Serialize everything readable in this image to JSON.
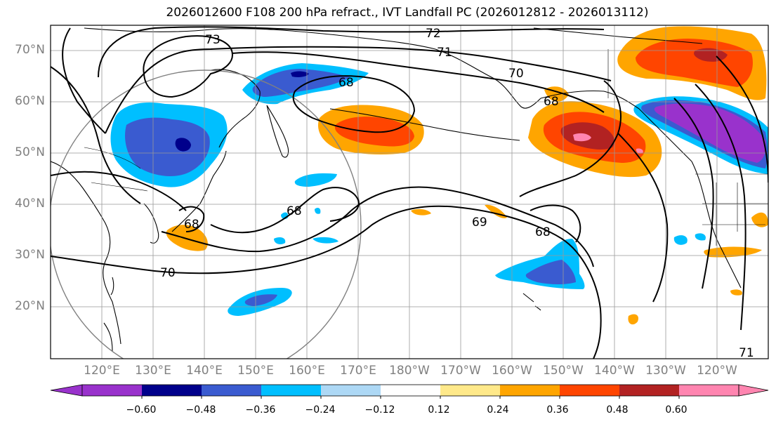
{
  "title": "2026012600 F108 200 hPa refract., IVT Landfall PC (2026012812 - 2026013112)",
  "lat_labels": [
    "70°N",
    "60°N",
    "50°N",
    "40°N",
    "30°N",
    "20°N"
  ],
  "lon_labels": [
    "120°E",
    "130°E",
    "140°E",
    "150°E",
    "160°E",
    "170°E",
    "180°W",
    "170°W",
    "160°W",
    "150°W",
    "140°W",
    "130°W",
    "120°W"
  ],
  "contour_labels": [
    "73",
    "72",
    "71",
    "70",
    "68",
    "69",
    "68",
    "70",
    "68",
    "68",
    "68",
    "71"
  ],
  "colorbar": {
    "colors": [
      "#9932cc",
      "#00008b",
      "#3a5bd0",
      "#00bfff",
      "#add8f5",
      "#ffffff",
      "#ffe98a",
      "#ffa500",
      "#ff4500",
      "#b22222",
      "#ff85b0"
    ],
    "under_color": "#9932cc",
    "over_color": "#ff85b0",
    "tick_labels": [
      "−0.60",
      "−0.48",
      "−0.36",
      "−0.24",
      "−0.12",
      "0.12",
      "0.24",
      "0.36",
      "0.48",
      "0.60"
    ]
  }
}
